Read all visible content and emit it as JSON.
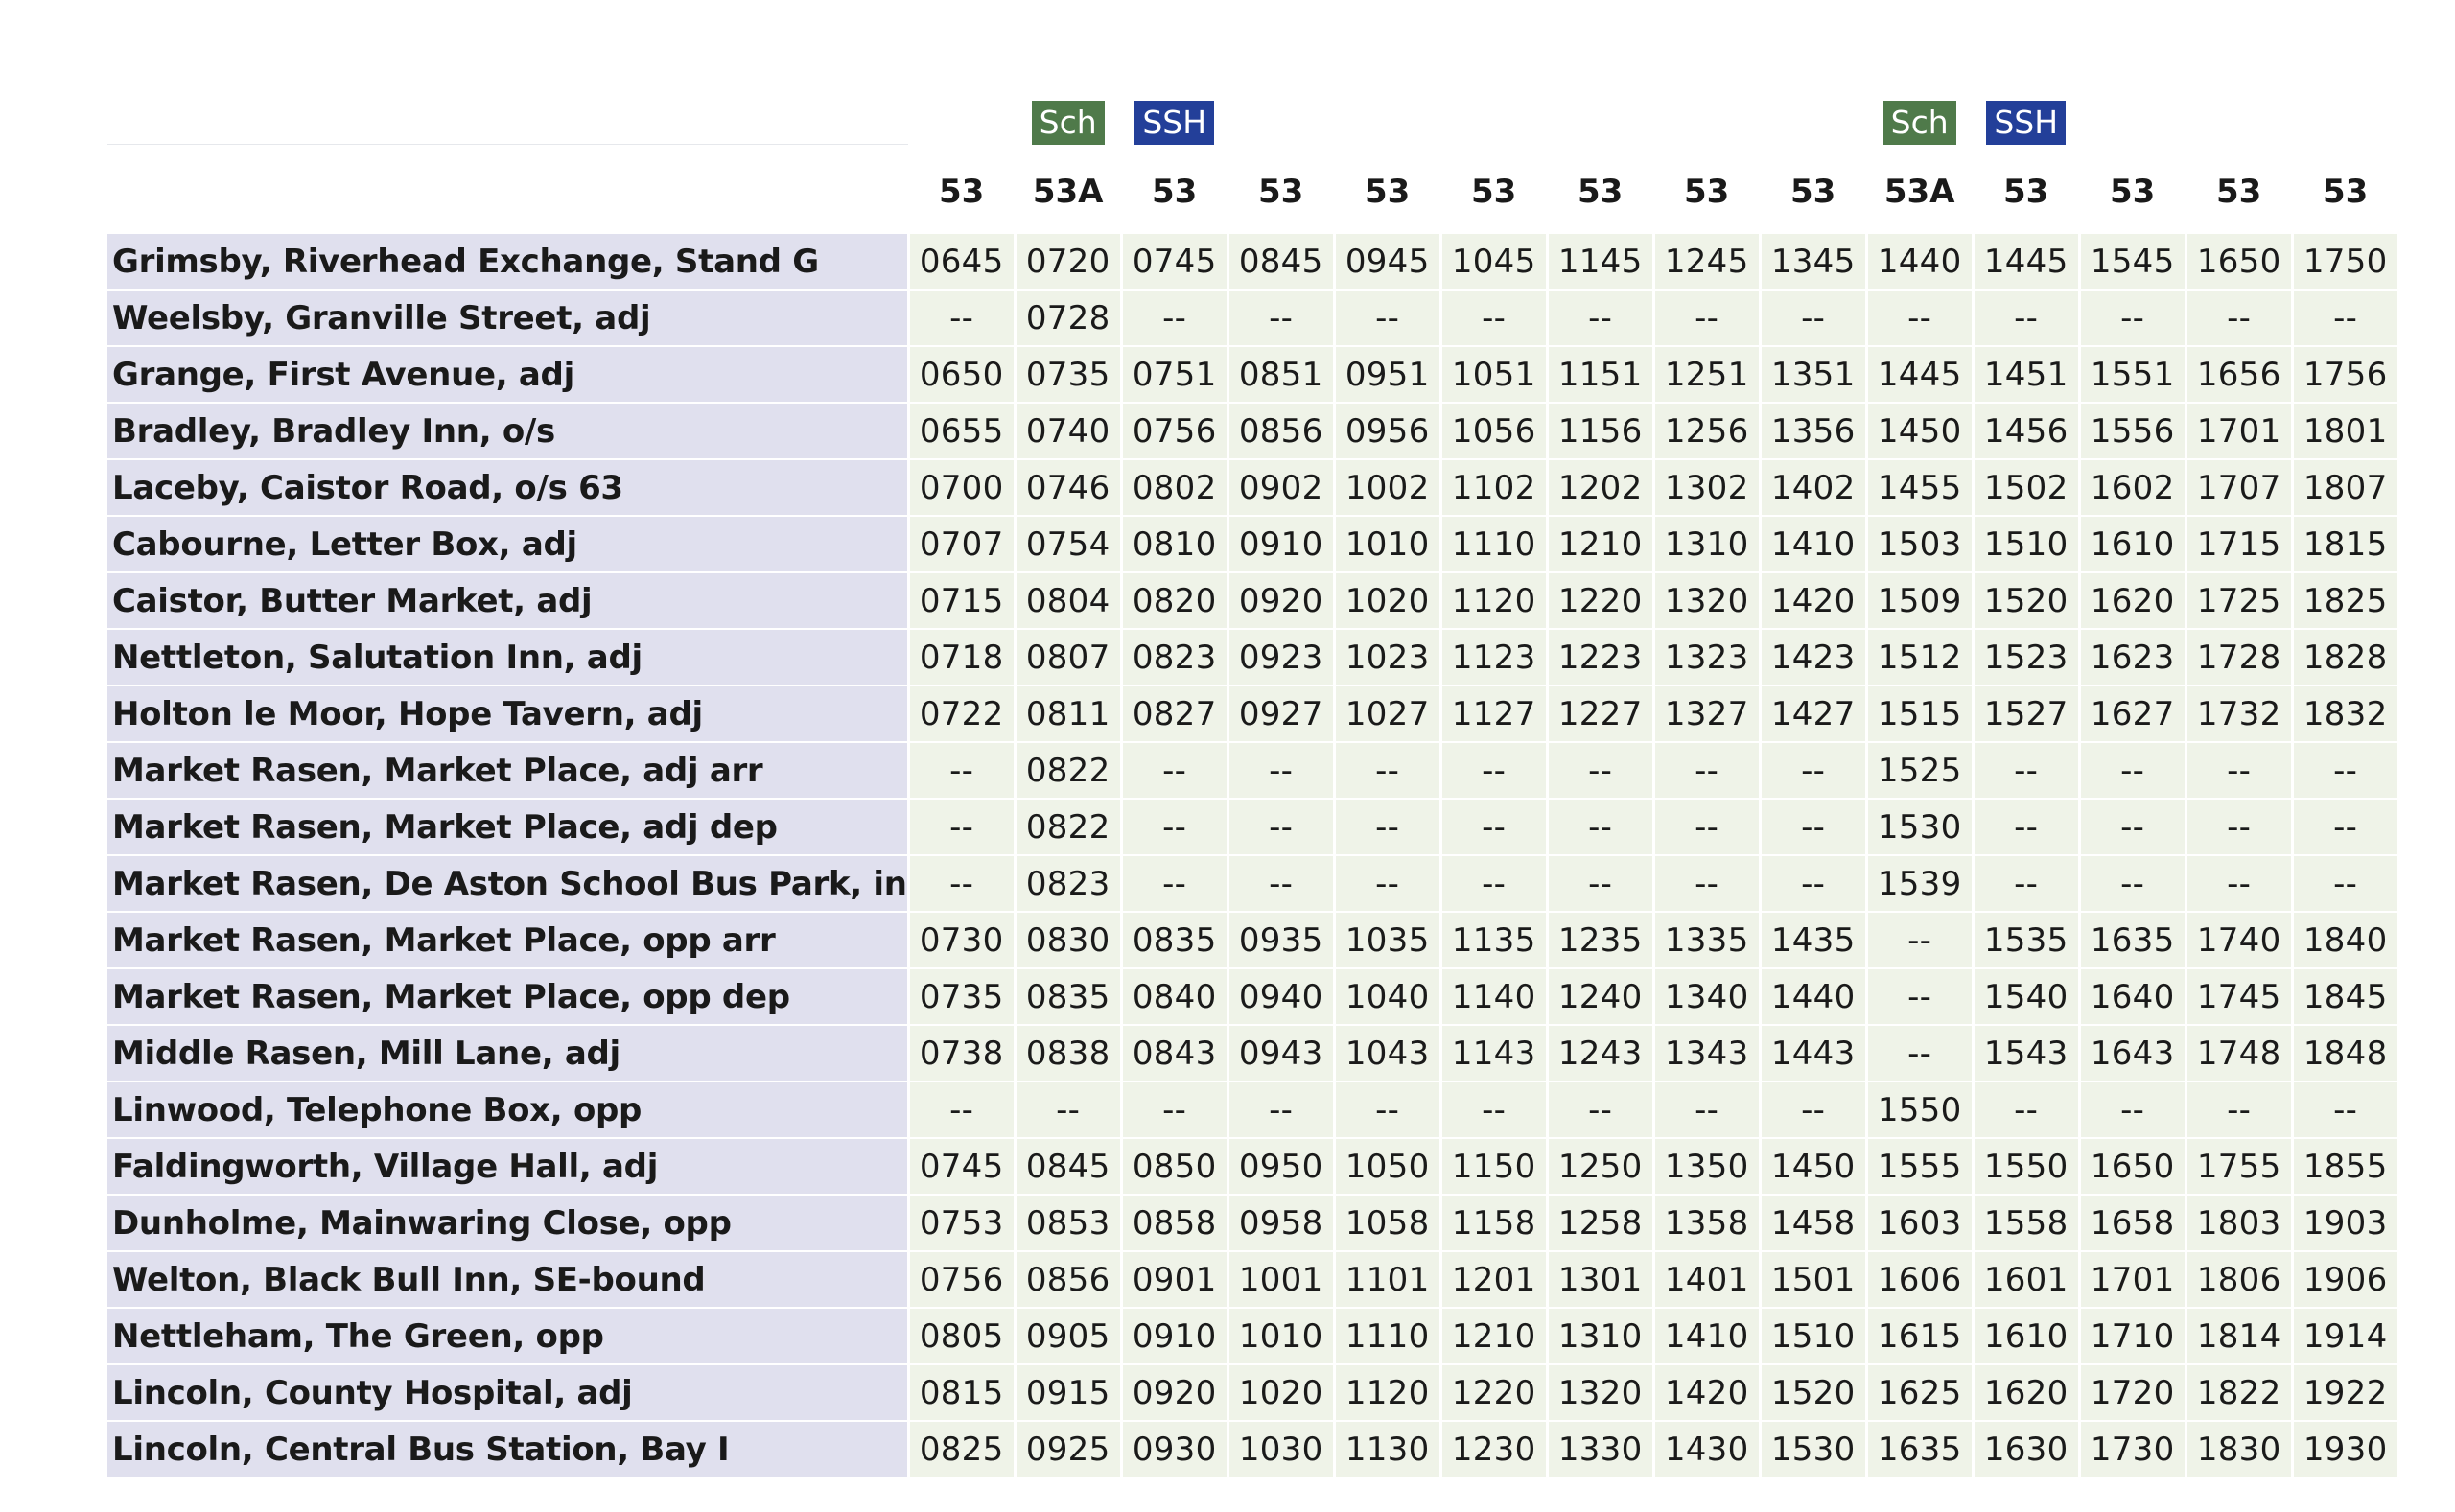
{
  "badges": [
    {
      "column": 1,
      "label": "Sch",
      "type": "sch"
    },
    {
      "column": 2,
      "label": "SSH",
      "type": "ssh"
    },
    {
      "column": 9,
      "label": "Sch",
      "type": "sch"
    },
    {
      "column": 10,
      "label": "SSH",
      "type": "ssh"
    }
  ],
  "routes": [
    "53",
    "53A",
    "53",
    "53",
    "53",
    "53",
    "53",
    "53",
    "53",
    "53A",
    "53",
    "53",
    "53",
    "53"
  ],
  "stops": [
    {
      "name": "Grimsby, Riverhead Exchange, Stand G",
      "times": [
        "0645",
        "0720",
        "0745",
        "0845",
        "0945",
        "1045",
        "1145",
        "1245",
        "1345",
        "1440",
        "1445",
        "1545",
        "1650",
        "1750"
      ]
    },
    {
      "name": "Weelsby, Granville Street, adj",
      "times": [
        "--",
        "0728",
        "--",
        "--",
        "--",
        "--",
        "--",
        "--",
        "--",
        "--",
        "--",
        "--",
        "--",
        "--"
      ]
    },
    {
      "name": "Grange, First Avenue, adj",
      "times": [
        "0650",
        "0735",
        "0751",
        "0851",
        "0951",
        "1051",
        "1151",
        "1251",
        "1351",
        "1445",
        "1451",
        "1551",
        "1656",
        "1756"
      ]
    },
    {
      "name": "Bradley, Bradley Inn, o/s",
      "times": [
        "0655",
        "0740",
        "0756",
        "0856",
        "0956",
        "1056",
        "1156",
        "1256",
        "1356",
        "1450",
        "1456",
        "1556",
        "1701",
        "1801"
      ]
    },
    {
      "name": "Laceby, Caistor Road, o/s 63",
      "times": [
        "0700",
        "0746",
        "0802",
        "0902",
        "1002",
        "1102",
        "1202",
        "1302",
        "1402",
        "1455",
        "1502",
        "1602",
        "1707",
        "1807"
      ]
    },
    {
      "name": "Cabourne, Letter Box, adj",
      "times": [
        "0707",
        "0754",
        "0810",
        "0910",
        "1010",
        "1110",
        "1210",
        "1310",
        "1410",
        "1503",
        "1510",
        "1610",
        "1715",
        "1815"
      ]
    },
    {
      "name": "Caistor, Butter Market, adj",
      "times": [
        "0715",
        "0804",
        "0820",
        "0920",
        "1020",
        "1120",
        "1220",
        "1320",
        "1420",
        "1509",
        "1520",
        "1620",
        "1725",
        "1825"
      ]
    },
    {
      "name": "Nettleton, Salutation Inn, adj",
      "times": [
        "0718",
        "0807",
        "0823",
        "0923",
        "1023",
        "1123",
        "1223",
        "1323",
        "1423",
        "1512",
        "1523",
        "1623",
        "1728",
        "1828"
      ]
    },
    {
      "name": "Holton le Moor, Hope Tavern, adj",
      "times": [
        "0722",
        "0811",
        "0827",
        "0927",
        "1027",
        "1127",
        "1227",
        "1327",
        "1427",
        "1515",
        "1527",
        "1627",
        "1732",
        "1832"
      ]
    },
    {
      "name": "Market Rasen, Market Place, adj arr",
      "times": [
        "--",
        "0822",
        "--",
        "--",
        "--",
        "--",
        "--",
        "--",
        "--",
        "1525",
        "--",
        "--",
        "--",
        "--"
      ]
    },
    {
      "name": "Market Rasen, Market Place, adj dep",
      "times": [
        "--",
        "0822",
        "--",
        "--",
        "--",
        "--",
        "--",
        "--",
        "--",
        "1530",
        "--",
        "--",
        "--",
        "--"
      ]
    },
    {
      "name": "Market Rasen, De Aston School Bus Park, in",
      "times": [
        "--",
        "0823",
        "--",
        "--",
        "--",
        "--",
        "--",
        "--",
        "--",
        "1539",
        "--",
        "--",
        "--",
        "--"
      ]
    },
    {
      "name": "Market Rasen, Market Place, opp arr",
      "times": [
        "0730",
        "0830",
        "0835",
        "0935",
        "1035",
        "1135",
        "1235",
        "1335",
        "1435",
        "--",
        "1535",
        "1635",
        "1740",
        "1840"
      ]
    },
    {
      "name": "Market Rasen, Market Place, opp dep",
      "times": [
        "0735",
        "0835",
        "0840",
        "0940",
        "1040",
        "1140",
        "1240",
        "1340",
        "1440",
        "--",
        "1540",
        "1640",
        "1745",
        "1845"
      ]
    },
    {
      "name": "Middle Rasen, Mill Lane, adj",
      "times": [
        "0738",
        "0838",
        "0843",
        "0943",
        "1043",
        "1143",
        "1243",
        "1343",
        "1443",
        "--",
        "1543",
        "1643",
        "1748",
        "1848"
      ]
    },
    {
      "name": "Linwood, Telephone Box, opp",
      "times": [
        "--",
        "--",
        "--",
        "--",
        "--",
        "--",
        "--",
        "--",
        "--",
        "1550",
        "--",
        "--",
        "--",
        "--"
      ]
    },
    {
      "name": "Faldingworth, Village Hall, adj",
      "times": [
        "0745",
        "0845",
        "0850",
        "0950",
        "1050",
        "1150",
        "1250",
        "1350",
        "1450",
        "1555",
        "1550",
        "1650",
        "1755",
        "1855"
      ]
    },
    {
      "name": "Dunholme, Mainwaring Close, opp",
      "times": [
        "0753",
        "0853",
        "0858",
        "0958",
        "1058",
        "1158",
        "1258",
        "1358",
        "1458",
        "1603",
        "1558",
        "1658",
        "1803",
        "1903"
      ]
    },
    {
      "name": "Welton, Black Bull Inn, SE-bound",
      "times": [
        "0756",
        "0856",
        "0901",
        "1001",
        "1101",
        "1201",
        "1301",
        "1401",
        "1501",
        "1606",
        "1601",
        "1701",
        "1806",
        "1906"
      ]
    },
    {
      "name": "Nettleham, The Green, opp",
      "times": [
        "0805",
        "0905",
        "0910",
        "1010",
        "1110",
        "1210",
        "1310",
        "1410",
        "1510",
        "1615",
        "1610",
        "1710",
        "1814",
        "1914"
      ]
    },
    {
      "name": "Lincoln, County Hospital, adj",
      "times": [
        "0815",
        "0915",
        "0920",
        "1020",
        "1120",
        "1220",
        "1320",
        "1420",
        "1520",
        "1625",
        "1620",
        "1720",
        "1822",
        "1922"
      ]
    },
    {
      "name": "Lincoln, Central Bus Station, Bay I",
      "times": [
        "0825",
        "0925",
        "0930",
        "1030",
        "1130",
        "1230",
        "1330",
        "1430",
        "1530",
        "1635",
        "1630",
        "1730",
        "1830",
        "1930"
      ]
    }
  ],
  "colors": {
    "sch_badge": "#4f7a4a",
    "ssh_badge": "#233f99",
    "stop_cell": "#e0e0ee",
    "time_cell": "#eff3e8"
  }
}
